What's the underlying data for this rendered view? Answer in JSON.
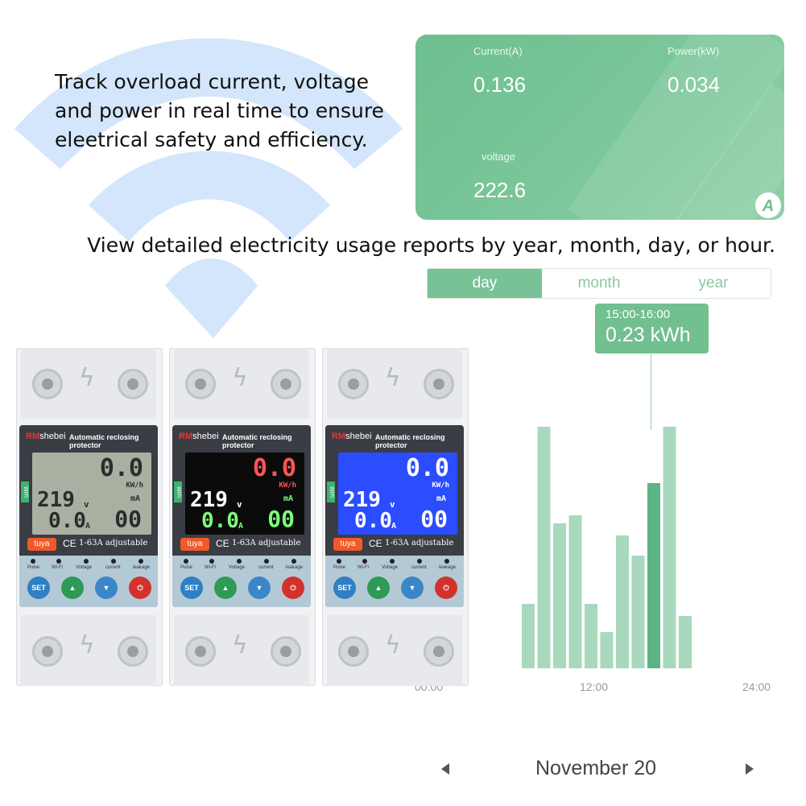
{
  "headline": "Track overload current, voltage\nand power in real time to ensure\neleetrical safety and efficiency.",
  "subheadline": "View detailed electricity usage reports by year, month, day, or hour.",
  "metrics_card": {
    "current_label": "Current(A)",
    "current_value": "0.136",
    "power_label": "Power(kW)",
    "power_value": "0.034",
    "voltage_label": "voltage",
    "voltage_value": "222.6",
    "badge": "A",
    "color": "#74c396"
  },
  "tabs": [
    {
      "label": "day",
      "active": true
    },
    {
      "label": "month",
      "active": false
    },
    {
      "label": "year",
      "active": false
    }
  ],
  "tooltip": {
    "time": "15:00-16:00",
    "value": "0.23 kWh"
  },
  "chart_data": {
    "type": "bar",
    "x_ticks": [
      "00:00",
      "12:00",
      "24:00"
    ],
    "values": [
      0.08,
      0.3,
      0.18,
      0.19,
      0.08,
      0.045,
      0.165,
      0.14,
      0.23,
      0.3,
      0.065
    ],
    "highlight_index": 8,
    "ylim": [
      0,
      0.33
    ],
    "bar_color": "#a8d9bd",
    "highlight_color": "#5cb383",
    "grid": false
  },
  "date_nav": {
    "label": "November 20"
  },
  "devices": [
    {
      "brand_red": "RM",
      "brand_rest": "shebei",
      "title": "Automatic reclosing protector",
      "lcd_bg": "#a9b0a2",
      "seg_color": "#2c2c2c",
      "seg_color2": "#2c2c2c",
      "seg_color3": "#2c2c2c",
      "top": "0.0",
      "top_unit": "KW/h",
      "volt": "219",
      "volt_unit": "v",
      "amp": "0.0",
      "amp_unit": "A",
      "ma": "00",
      "ma_unit": "mA",
      "wifi_tag": "WiFi",
      "tuya": "tuya",
      "ce": "CE",
      "rating": "1-63A adjustable",
      "leds": [
        "Pulse",
        "Wi-Fi",
        "Voltage",
        "current",
        "leakage"
      ],
      "buttons": [
        "SET",
        "▲",
        "▼",
        "⏻"
      ]
    },
    {
      "brand_red": "RM",
      "brand_rest": "shebei",
      "title": "Automatic reclosing protector",
      "lcd_bg": "#0b0b0b",
      "seg_color": "#ffffff",
      "seg_color2": "#ff5555",
      "seg_color3": "#7cff7c",
      "top": "0.0",
      "top_unit": "KW/h",
      "volt": "219",
      "volt_unit": "v",
      "amp": "0.0",
      "amp_unit": "A",
      "ma": "00",
      "ma_unit": "mA",
      "wifi_tag": "WiFi",
      "tuya": "tuya",
      "ce": "CE",
      "rating": "1-63A adjustable",
      "leds": [
        "Pulse",
        "Wi-Fi",
        "Voltage",
        "current",
        "leakage"
      ],
      "buttons": [
        "SET",
        "▲",
        "▼",
        "⏻"
      ]
    },
    {
      "brand_red": "RM",
      "brand_rest": "shebei",
      "title": "Automatic reclosing protector",
      "lcd_bg": "#2b4cff",
      "seg_color": "#ffffff",
      "seg_color2": "#ffffff",
      "seg_color3": "#ffffff",
      "top": "0.0",
      "top_unit": "KW/h",
      "volt": "219",
      "volt_unit": "v",
      "amp": "0.0",
      "amp_unit": "A",
      "ma": "00",
      "ma_unit": "mA",
      "wifi_tag": "WiFi",
      "tuya": "tuya",
      "ce": "CE",
      "rating": "1-63A adjustable",
      "leds": [
        "Pulse",
        "Wi-Fi",
        "Voltage",
        "current",
        "leakage"
      ],
      "buttons": [
        "SET",
        "▲",
        "▼",
        "⏻"
      ]
    }
  ]
}
